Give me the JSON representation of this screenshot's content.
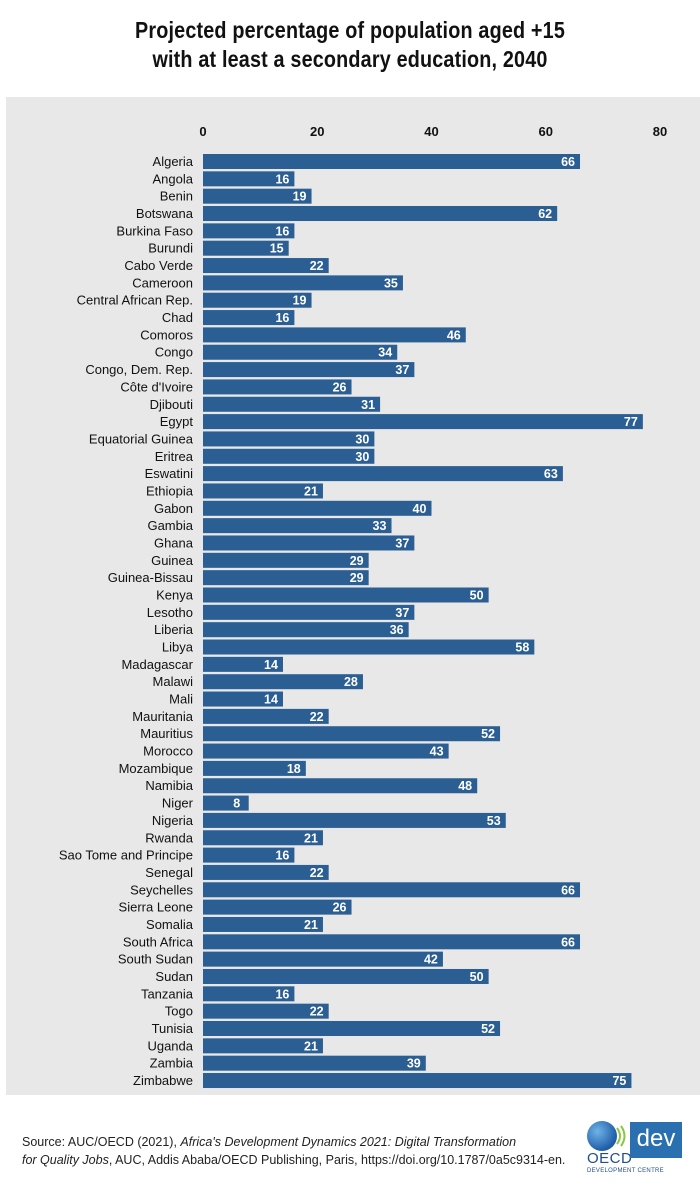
{
  "chart_data": {
    "type": "bar",
    "orientation": "horizontal",
    "title_lines": [
      "Projected percentage of population aged  +15",
      "with at least a secondary education, 2040"
    ],
    "xlim": [
      0,
      80
    ],
    "xticks": [
      0,
      20,
      40,
      60,
      80
    ],
    "axis_position": "top",
    "grid": false,
    "bar_color": "#2b5e93",
    "categories": [
      "Algeria",
      "Angola",
      "Benin",
      "Botswana",
      "Burkina Faso",
      "Burundi",
      "Cabo Verde",
      "Cameroon",
      "Central African Rep.",
      "Chad",
      "Comoros",
      "Congo",
      "Congo, Dem. Rep.",
      "Côte d'Ivoire",
      "Djibouti",
      "Egypt",
      "Equatorial Guinea",
      "Eritrea",
      "Eswatini",
      "Ethiopia",
      "Gabon",
      "Gambia",
      "Ghana",
      "Guinea",
      "Guinea-Bissau",
      "Kenya",
      "Lesotho",
      "Liberia",
      "Libya",
      "Madagascar",
      "Malawi",
      "Mali",
      "Mauritania",
      "Mauritius",
      "Morocco",
      "Mozambique",
      "Namibia",
      "Niger",
      "Nigeria",
      "Rwanda",
      "Sao Tome and Principe",
      "Senegal",
      "Seychelles",
      "Sierra Leone",
      "Somalia",
      "South Africa",
      "South Sudan",
      "Sudan",
      "Tanzania",
      "Togo",
      "Tunisia",
      "Uganda",
      "Zambia",
      "Zimbabwe"
    ],
    "values": [
      66,
      16,
      19,
      62,
      16,
      15,
      22,
      35,
      19,
      16,
      46,
      34,
      37,
      26,
      31,
      77,
      30,
      30,
      63,
      21,
      40,
      33,
      37,
      29,
      29,
      50,
      37,
      36,
      58,
      14,
      28,
      14,
      22,
      52,
      43,
      18,
      48,
      8,
      53,
      21,
      16,
      22,
      66,
      26,
      21,
      66,
      42,
      50,
      16,
      22,
      52,
      21,
      39,
      75
    ]
  },
  "source": {
    "prefix": "Source: AUC/OECD (2021), ",
    "italic1": "Africa's Development Dynamics 2021: Digital Transformation",
    "italic2": "for Quality Jobs",
    "suffix": ", AUC, Addis Ababa/OECD Publishing, Paris, https://doi.org/10.1787/0a5c9314-en."
  },
  "logo": {
    "org": "OECD",
    "badge": "dev",
    "subtitle": "DEVELOPMENT CENTRE"
  }
}
